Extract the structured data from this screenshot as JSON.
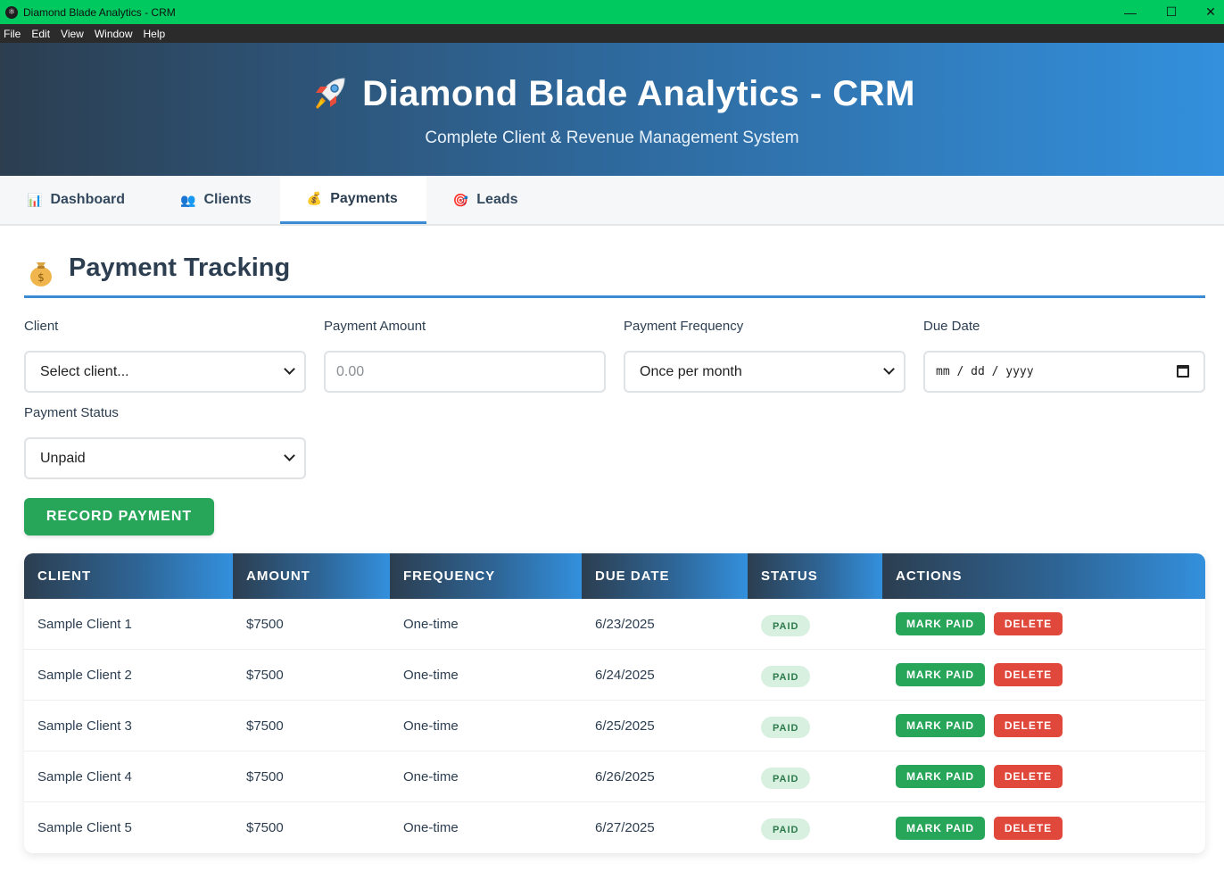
{
  "window": {
    "title": "Diamond Blade Analytics - CRM"
  },
  "menu": [
    "File",
    "Edit",
    "View",
    "Window",
    "Help"
  ],
  "header": {
    "title": "Diamond Blade Analytics - CRM",
    "subtitle": "Complete Client & Revenue Management System"
  },
  "tabs": [
    {
      "label": "Dashboard",
      "icon": "bar-chart-icon",
      "glyph": "📊",
      "active": false
    },
    {
      "label": "Clients",
      "icon": "people-icon",
      "glyph": "👥",
      "active": false
    },
    {
      "label": "Payments",
      "icon": "money-bag-icon",
      "glyph": "💰",
      "active": true
    },
    {
      "label": "Leads",
      "icon": "target-icon",
      "glyph": "🎯",
      "active": false
    }
  ],
  "section": {
    "title": "Payment Tracking"
  },
  "form": {
    "client": {
      "label": "Client",
      "value": "Select client..."
    },
    "amount": {
      "label": "Payment Amount",
      "placeholder": "0.00"
    },
    "frequency": {
      "label": "Payment Frequency",
      "value": "Once per month"
    },
    "due_date": {
      "label": "Due Date",
      "placeholder": "mm / dd / yyyy"
    },
    "status": {
      "label": "Payment Status",
      "value": "Unpaid"
    },
    "submit_label": "RECORD PAYMENT"
  },
  "table": {
    "columns": [
      "CLIENT",
      "AMOUNT",
      "FREQUENCY",
      "DUE DATE",
      "STATUS",
      "ACTIONS"
    ],
    "rows": [
      {
        "client": "Sample Client 1",
        "amount": "$7500",
        "frequency": "One-time",
        "due": "6/23/2025",
        "status": "PAID"
      },
      {
        "client": "Sample Client 2",
        "amount": "$7500",
        "frequency": "One-time",
        "due": "6/24/2025",
        "status": "PAID"
      },
      {
        "client": "Sample Client 3",
        "amount": "$7500",
        "frequency": "One-time",
        "due": "6/25/2025",
        "status": "PAID"
      },
      {
        "client": "Sample Client 4",
        "amount": "$7500",
        "frequency": "One-time",
        "due": "6/26/2025",
        "status": "PAID"
      },
      {
        "client": "Sample Client 5",
        "amount": "$7500",
        "frequency": "One-time",
        "due": "6/27/2025",
        "status": "PAID"
      }
    ],
    "action_labels": {
      "mark_paid": "MARK PAID",
      "delete": "DELETE"
    }
  },
  "colors": {
    "titlebar": "#00c95f",
    "accent": "#3a8ad4",
    "success": "#27a65a",
    "danger": "#e0483b",
    "header_dark": "#2c3e50"
  }
}
